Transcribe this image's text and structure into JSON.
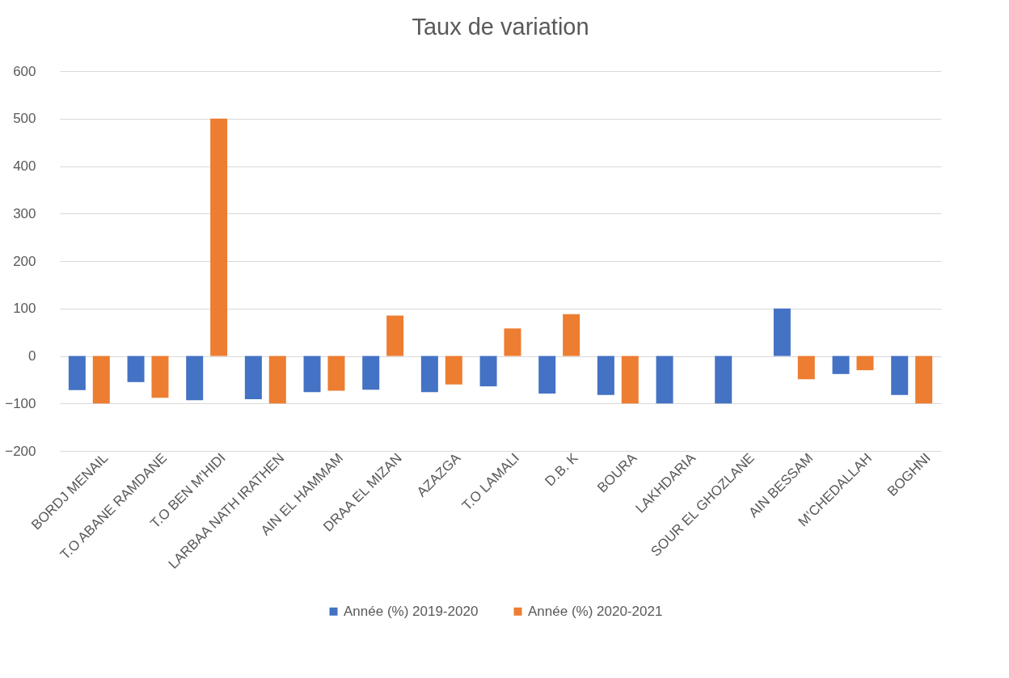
{
  "chart_data": {
    "type": "bar",
    "title": "Taux de variation",
    "categories": [
      "BORDJ MENAIL",
      "T.O ABANE RAMDANE",
      "T.O BEN M’HIDI",
      "LARBAA NATH IRATHEN",
      "AIN EL HAMMAM",
      "DRAA EL MIZAN",
      "AZAZGA",
      "T.O LAMALI",
      "D.B. K",
      "BOURA",
      "LAKHDARIA",
      "SOUR EL GHOZLANE",
      "AIN BESSAM",
      "M’CHEDALLAH",
      "BOGHNI"
    ],
    "series": [
      {
        "name": "Année (%) 2019-2020",
        "color": "#4472c4",
        "values": [
          -72,
          -55,
          -93,
          -91,
          -76,
          -71,
          -76,
          -64,
          -79,
          -82,
          -100,
          -100,
          100,
          -38,
          -82
        ]
      },
      {
        "name": "Année (%) 2020-2021",
        "color": "#ed7d31",
        "values": [
          -100,
          -88,
          500,
          -100,
          -73,
          85,
          -60,
          58,
          88,
          -100,
          null,
          null,
          -49,
          -30,
          -100
        ]
      }
    ],
    "ylim": [
      -200,
      600
    ],
    "yticks": [
      -200,
      -100,
      0,
      100,
      200,
      300,
      400,
      500,
      600
    ],
    "grid": "y",
    "legend": "bottom"
  }
}
